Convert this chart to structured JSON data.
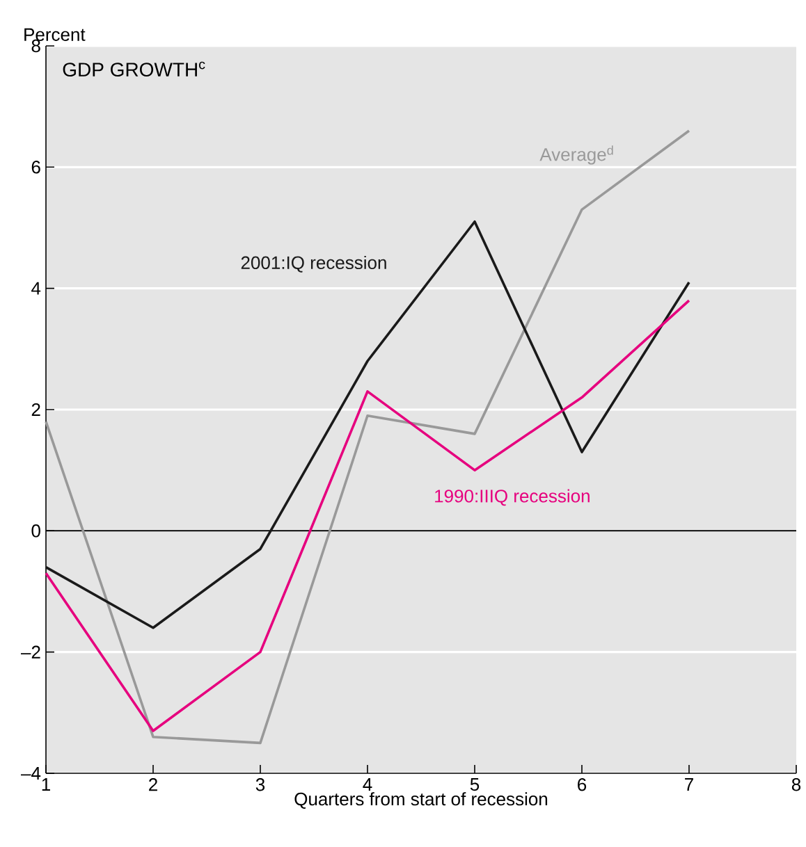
{
  "chart_data": {
    "type": "line",
    "title": "GDP GROWTH$^{c}$",
    "ylabel": "Percent",
    "xlabel": "Quarters from start of recession",
    "x": [
      1,
      2,
      3,
      4,
      5,
      6,
      7
    ],
    "series": [
      {
        "name": "Average$^{d}$",
        "color": "#999999",
        "values": [
          1.8,
          -3.4,
          -3.5,
          1.9,
          1.6,
          5.3,
          6.6
        ]
      },
      {
        "name": "2001:IQ recession",
        "color": "#1a1a1a",
        "values": [
          -0.6,
          -1.6,
          -0.3,
          2.8,
          5.1,
          1.3,
          4.1
        ]
      },
      {
        "name": "1990:IIIQ recession",
        "color": "#e6007e",
        "values": [
          -0.7,
          -3.3,
          -2.0,
          2.3,
          1.0,
          2.2,
          3.8
        ]
      }
    ],
    "xlim": [
      1,
      8
    ],
    "ylim": [
      -4,
      8
    ],
    "xticks": [
      1,
      2,
      3,
      4,
      5,
      6,
      7,
      8
    ],
    "yticks": [
      {
        "value": -4,
        "label": "–4"
      },
      {
        "value": -2,
        "label": "–2"
      },
      0,
      2,
      4,
      6,
      8
    ],
    "ref_lines": [
      {
        "axis": "y",
        "value": 0,
        "color": "#000000"
      }
    ],
    "grid": "y",
    "legend": false,
    "marker": "none",
    "line_style": "solid"
  }
}
